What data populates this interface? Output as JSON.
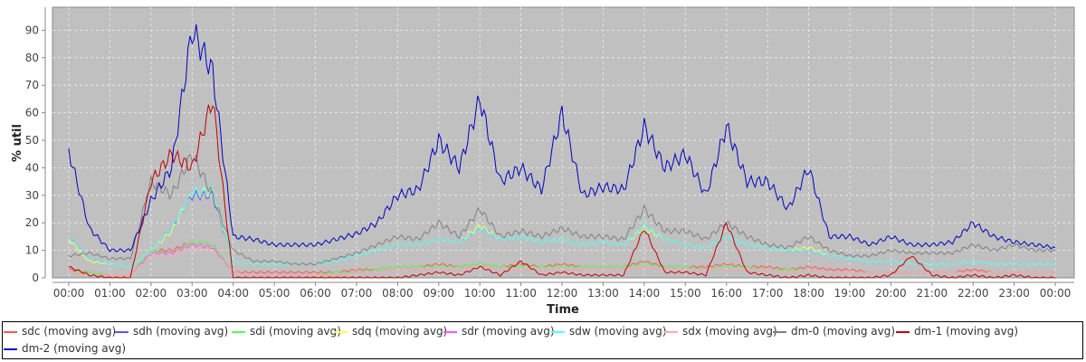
{
  "chart_data": {
    "type": "line",
    "title": "",
    "xlabel": "Time",
    "ylabel": "% util",
    "ylim": [
      0,
      98
    ],
    "xlim_hours": [
      -0.4,
      24.45
    ],
    "grid": true,
    "legend_placement": "bottom",
    "x_tick_labels": [
      "00:00",
      "01:00",
      "02:00",
      "03:00",
      "04:00",
      "05:00",
      "06:00",
      "07:00",
      "08:00",
      "09:00",
      "10:00",
      "11:00",
      "12:00",
      "13:00",
      "14:00",
      "15:00",
      "16:00",
      "17:00",
      "18:00",
      "19:00",
      "20:00",
      "21:00",
      "22:00",
      "23:00",
      "00:00"
    ],
    "y_tick_labels": [
      "0",
      "10",
      "20",
      "30",
      "40",
      "50",
      "60",
      "70",
      "80",
      "90"
    ],
    "x_step_hours": 0.5,
    "series": [
      {
        "name": "sdc (moving avg)",
        "color": "#ff5555",
        "values": [
          3,
          2,
          1,
          1,
          10,
          10,
          13,
          12,
          2,
          2,
          2,
          2,
          2,
          2,
          3,
          3,
          4,
          4,
          5,
          4,
          5,
          4,
          5,
          4,
          5,
          4,
          4,
          4,
          6,
          4,
          4,
          4,
          5,
          4,
          4,
          3,
          4,
          3,
          3,
          2,
          2,
          2,
          2,
          2,
          3,
          2,
          2,
          2,
          2
        ]
      },
      {
        "name": "sdh (moving avg)",
        "color": "#5555ff",
        "values": [
          15,
          7,
          5,
          4,
          10,
          18,
          30,
          30,
          6,
          5,
          5,
          5,
          5,
          6,
          8,
          10,
          12,
          12,
          14,
          13,
          18,
          14,
          15,
          13,
          14,
          12,
          13,
          12,
          18,
          14,
          12,
          11,
          15,
          12,
          11,
          10,
          10,
          8,
          7,
          6,
          6,
          5,
          5,
          5,
          6,
          5,
          5,
          5,
          5
        ]
      },
      {
        "name": "sdi (moving avg)",
        "color": "#55ff55",
        "values": [
          2,
          2,
          1,
          1,
          10,
          9,
          13,
          12,
          2,
          1,
          1,
          1,
          1,
          2,
          2,
          3,
          4,
          4,
          4,
          4,
          5,
          4,
          4,
          4,
          4,
          4,
          4,
          4,
          5,
          4,
          4,
          3,
          4,
          4,
          3,
          3,
          3,
          2,
          2,
          2,
          2,
          2,
          2,
          2,
          2,
          2,
          2,
          2,
          2
        ]
      },
      {
        "name": "sdq (moving avg)",
        "color": "#ffff55",
        "values": [
          14,
          6,
          5,
          4,
          10,
          17,
          31,
          31,
          6,
          5,
          5,
          5,
          5,
          6,
          8,
          10,
          12,
          12,
          14,
          13,
          19,
          14,
          15,
          13,
          14,
          12,
          13,
          12,
          18,
          14,
          12,
          11,
          15,
          12,
          11,
          10,
          11,
          8,
          7,
          6,
          6,
          5,
          5,
          5,
          6,
          5,
          5,
          5,
          5
        ]
      },
      {
        "name": "sdr (moving avg)",
        "color": "#ff55ff",
        "values": [
          2,
          1,
          1,
          1,
          9,
          9,
          12,
          11,
          2,
          1,
          1,
          1,
          1,
          1,
          2,
          2,
          3,
          3,
          3,
          3,
          4,
          3,
          3,
          3,
          3,
          3,
          3,
          3,
          4,
          3,
          3,
          3,
          3,
          3,
          3,
          2,
          3,
          2,
          2,
          2,
          2,
          2,
          2,
          2,
          2,
          2,
          2,
          2,
          2
        ]
      },
      {
        "name": "sdw (moving avg)",
        "color": "#55ffff",
        "values": [
          15,
          7,
          5,
          4,
          10,
          18,
          31,
          32,
          6,
          5,
          5,
          5,
          5,
          6,
          8,
          10,
          12,
          12,
          14,
          13,
          18,
          14,
          15,
          13,
          14,
          12,
          13,
          12,
          19,
          14,
          12,
          11,
          15,
          12,
          11,
          10,
          10,
          8,
          7,
          6,
          6,
          5,
          5,
          5,
          6,
          5,
          5,
          5,
          5
        ]
      },
      {
        "name": "sdx (moving avg)",
        "color": "#ffaaaa",
        "values": [
          2,
          1,
          1,
          1,
          8,
          8,
          11,
          10,
          2,
          1,
          1,
          1,
          1,
          1,
          2,
          2,
          3,
          3,
          3,
          3,
          4,
          3,
          3,
          3,
          3,
          3,
          3,
          3,
          4,
          3,
          3,
          3,
          3,
          3,
          3,
          2,
          3,
          2,
          2,
          2,
          2,
          2,
          2,
          2,
          2,
          2,
          2,
          2,
          2
        ]
      },
      {
        "name": "dm-0 (moving avg)",
        "color": "#808080",
        "values": [
          8,
          9,
          7,
          7,
          35,
          30,
          45,
          30,
          10,
          6,
          6,
          5,
          5,
          7,
          9,
          12,
          15,
          14,
          20,
          15,
          25,
          15,
          17,
          15,
          18,
          15,
          15,
          14,
          25,
          17,
          17,
          14,
          20,
          15,
          12,
          11,
          15,
          10,
          8,
          8,
          10,
          9,
          9,
          9,
          12,
          10,
          12,
          10,
          10
        ]
      },
      {
        "name": "dm-1 (moving avg)",
        "color": "#c00000",
        "values": [
          4,
          1,
          0,
          0,
          35,
          45,
          40,
          65,
          0,
          0,
          0,
          0,
          0,
          0,
          0,
          0,
          0,
          1,
          2,
          1,
          4,
          1,
          6,
          1,
          2,
          1,
          1,
          1,
          18,
          2,
          2,
          1,
          20,
          2,
          1,
          0,
          1,
          0,
          0,
          0,
          1,
          8,
          1,
          0,
          1,
          0,
          1,
          0,
          0
        ]
      },
      {
        "name": "dm-2 (moving avg)",
        "color": "#0000c0",
        "values": [
          46,
          18,
          10,
          10,
          28,
          40,
          90,
          75,
          15,
          14,
          12,
          12,
          12,
          14,
          16,
          20,
          30,
          32,
          50,
          40,
          65,
          35,
          40,
          32,
          60,
          30,
          33,
          32,
          55,
          40,
          45,
          30,
          55,
          35,
          35,
          25,
          40,
          15,
          15,
          12,
          15,
          12,
          12,
          13,
          20,
          15,
          13,
          12,
          11
        ]
      }
    ]
  }
}
